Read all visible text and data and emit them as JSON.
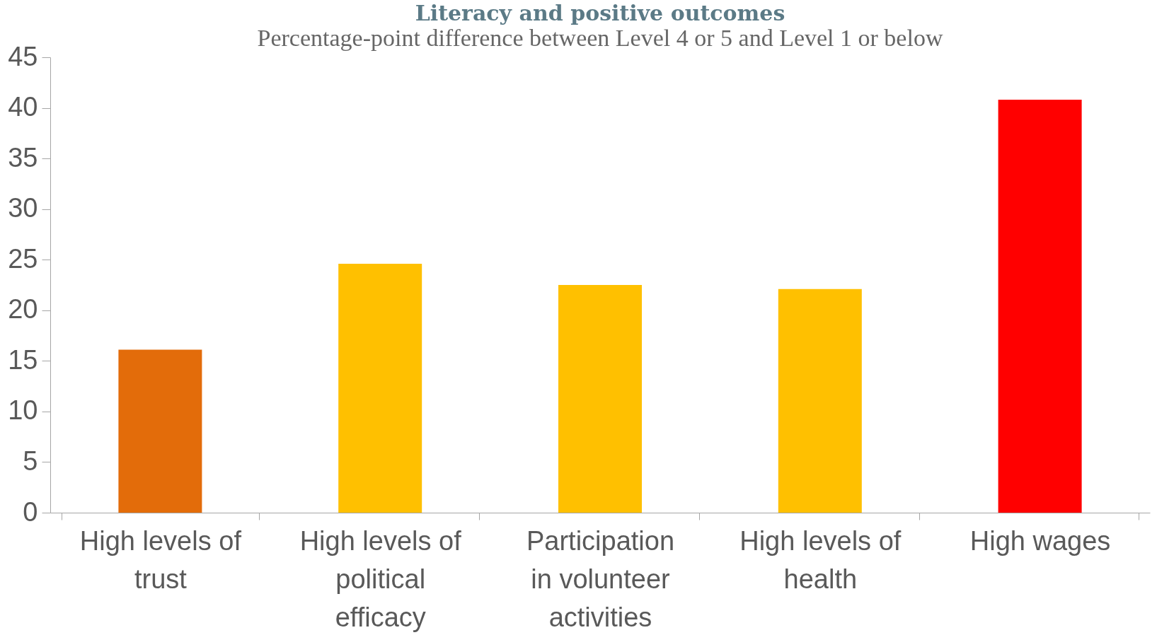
{
  "chart_data": {
    "type": "bar",
    "title": "Literacy and positive outcomes",
    "subtitle": "Percentage-point difference between Level 4 or 5 and Level 1 or below",
    "categories": [
      "High levels of trust",
      "High levels of political efficacy",
      "Participation in volunteer activities",
      "High levels of health",
      "High wages"
    ],
    "values": [
      16.1,
      24.6,
      22.5,
      22.1,
      40.8
    ],
    "colors": [
      "#e36c0a",
      "#ffc000",
      "#ffc000",
      "#ffc000",
      "#ff0000"
    ],
    "ylim": [
      0,
      45
    ],
    "yticks": [
      0,
      5,
      10,
      15,
      20,
      25,
      30,
      35,
      40,
      45
    ],
    "grid": false
  }
}
